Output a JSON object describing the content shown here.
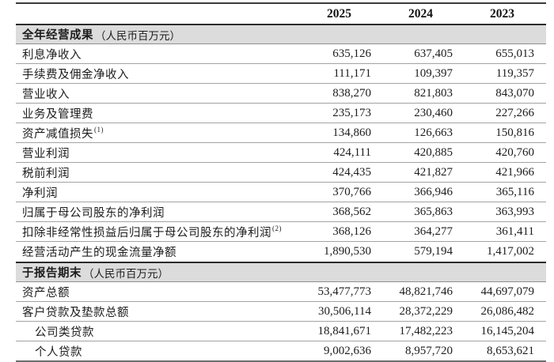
{
  "table": {
    "years": [
      "2025",
      "2024",
      "2023"
    ],
    "sections": [
      {
        "title": "全年经营成果",
        "unit": "（人民币百万元）",
        "rows": [
          {
            "label": "利息净收入",
            "sup": "",
            "values": [
              "635,126",
              "637,405",
              "655,013"
            ]
          },
          {
            "label": "手续费及佣金净收入",
            "sup": "",
            "values": [
              "111,171",
              "109,397",
              "119,357"
            ]
          },
          {
            "label": "营业收入",
            "sup": "",
            "values": [
              "838,270",
              "821,803",
              "843,070"
            ]
          },
          {
            "label": "业务及管理费",
            "sup": "",
            "values": [
              "235,173",
              "230,460",
              "227,266"
            ]
          },
          {
            "label": "资产减值损失",
            "sup": "(1)",
            "values": [
              "134,860",
              "126,663",
              "150,816"
            ]
          },
          {
            "label": "营业利润",
            "sup": "",
            "values": [
              "424,111",
              "420,885",
              "420,760"
            ]
          },
          {
            "label": "税前利润",
            "sup": "",
            "values": [
              "424,435",
              "421,827",
              "421,966"
            ]
          },
          {
            "label": "净利润",
            "sup": "",
            "values": [
              "370,766",
              "366,946",
              "365,116"
            ]
          },
          {
            "label": "归属于母公司股东的净利润",
            "sup": "",
            "values": [
              "368,562",
              "365,863",
              "363,993"
            ]
          },
          {
            "label": "扣除非经常性损益后归属于母公司股东的净利润",
            "sup": "(2)",
            "values": [
              "368,126",
              "364,277",
              "361,411"
            ]
          },
          {
            "label": "经营活动产生的现金流量净额",
            "sup": "",
            "values": [
              "1,890,530",
              "579,194",
              "1,417,002"
            ]
          }
        ]
      },
      {
        "title": "于报告期末",
        "unit": "（人民币百万元）",
        "rows": [
          {
            "label": "资产总额",
            "sup": "",
            "values": [
              "53,477,773",
              "48,821,746",
              "44,697,079"
            ]
          },
          {
            "label": "客户贷款及垫款总额",
            "sup": "",
            "values": [
              "30,506,114",
              "28,372,229",
              "26,086,482"
            ]
          },
          {
            "label": "公司类贷款",
            "sup": "",
            "values": [
              "18,841,671",
              "17,482,223",
              "16,145,204"
            ]
          },
          {
            "label": "个人贷款",
            "sup": "",
            "values": [
              "9,002,636",
              "8,957,720",
              "8,653,621"
            ]
          }
        ]
      }
    ]
  },
  "colors": {
    "band_bg": "#dcdcdc",
    "rule_dark": "#2b2b2b",
    "rule_light": "#a3a3a3"
  }
}
